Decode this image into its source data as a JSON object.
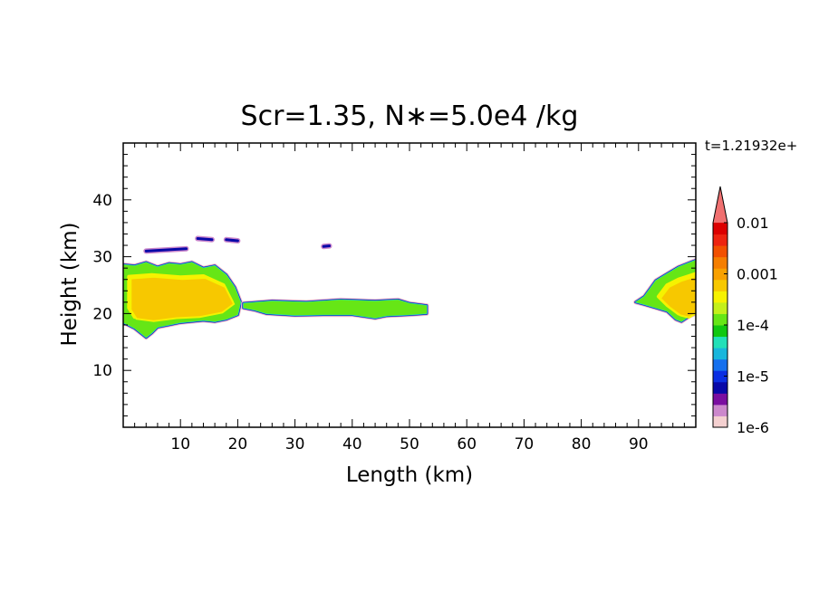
{
  "chart_data": {
    "type": "heatmap",
    "title": "Scr=1.35, N∗=5.0e4 /kg",
    "time_label": "t=1.21932e+",
    "xlabel": "Length  (km)",
    "ylabel": "Height  (km)",
    "xlim": [
      0,
      100
    ],
    "ylim": [
      0,
      50
    ],
    "xticks": [
      10,
      20,
      30,
      40,
      50,
      60,
      70,
      80,
      90
    ],
    "yticks": [
      10,
      20,
      30,
      40
    ],
    "colorbar": {
      "scale": "log",
      "range": [
        1e-06,
        0.01
      ],
      "tick_values": [
        1e-06,
        1e-05,
        0.0001,
        0.001,
        0.01
      ],
      "tick_labels": [
        "1e-6",
        "1e-5",
        "1e-4",
        "0.001",
        "0.01"
      ],
      "colors": [
        "#f4d0d0",
        "#cc88cc",
        "#7a0ea0",
        "#0808a8",
        "#0b2fe2",
        "#1570ee",
        "#18b6dc",
        "#22e0b8",
        "#10c810",
        "#66e616",
        "#c4f01a",
        "#f6f200",
        "#f7c800",
        "#f8a000",
        "#f57e00",
        "#f25000",
        "#ee2410",
        "#dc0000"
      ],
      "extend_color": "#f07070"
    },
    "regions": [
      {
        "name": "left-cloud",
        "x": [
          0,
          2,
          4,
          6,
          8,
          10,
          12,
          14,
          16,
          18,
          19.5,
          20.5,
          20,
          18,
          16,
          14,
          12,
          10,
          8,
          6,
          5,
          4,
          3,
          2,
          0
        ],
        "y": [
          28.6,
          28.4,
          29.0,
          28.2,
          28.8,
          28.6,
          29.0,
          28.0,
          28.4,
          26.8,
          24.6,
          22.0,
          19.8,
          19.0,
          18.6,
          18.8,
          18.6,
          18.4,
          18.0,
          17.6,
          16.6,
          15.8,
          16.6,
          17.4,
          18.4
        ],
        "core": {
          "x": [
            1,
            5,
            10,
            14,
            17.5,
            19,
            17,
            13,
            9,
            5,
            2,
            1
          ],
          "y": [
            26.5,
            26.8,
            26.4,
            26.6,
            25.0,
            22.0,
            20.5,
            19.7,
            19.5,
            19.0,
            19.4,
            21.0
          ]
        }
      },
      {
        "name": "upper-wisps",
        "segments": [
          [
            [
              13,
              33.2
            ],
            [
              15.5,
              33.0
            ]
          ],
          [
            [
              18,
              33.0
            ],
            [
              20,
              32.8
            ]
          ],
          [
            [
              4,
              31.0
            ],
            [
              11,
              31.4
            ]
          ],
          [
            [
              35,
              31.8
            ],
            [
              36,
              31.9
            ]
          ]
        ]
      },
      {
        "name": "thin-layer",
        "x": [
          21,
          26,
          32,
          38,
          44,
          48,
          50,
          53,
          53,
          50,
          46,
          44,
          40,
          35,
          30,
          25,
          23,
          21
        ],
        "y": [
          21.8,
          22.2,
          22.0,
          22.4,
          22.2,
          22.4,
          21.8,
          21.4,
          20.0,
          19.8,
          19.6,
          19.2,
          19.8,
          19.8,
          19.7,
          20.0,
          20.6,
          21.0
        ]
      },
      {
        "name": "right-cloud",
        "x": [
          100,
          97,
          95,
          93,
          91,
          89.5,
          91,
          93,
          95,
          96.5,
          97.5,
          99,
          100
        ],
        "y": [
          29.4,
          28.2,
          27.0,
          25.8,
          23.0,
          22.0,
          21.6,
          21.0,
          20.4,
          19.0,
          18.6,
          19.6,
          20.0
        ],
        "core": {
          "x": [
            100,
            97,
            95,
            93.5,
            95,
            97,
            98.5,
            100
          ],
          "y": [
            27.0,
            26.0,
            25.0,
            23.0,
            21.5,
            20.0,
            19.6,
            20.5
          ]
        }
      }
    ]
  }
}
